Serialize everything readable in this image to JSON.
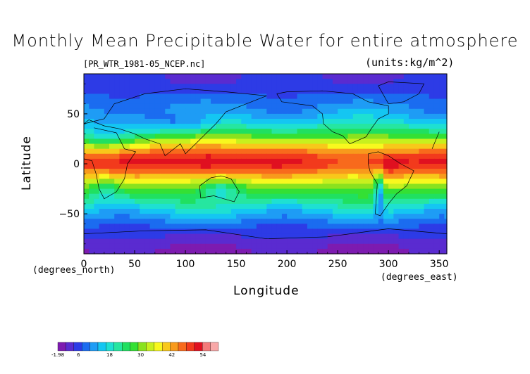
{
  "chart_data": {
    "type": "heatmap",
    "title": "Monthly Mean Precipitable Water for entire atmosphere",
    "source_label": "[PR_WTR_1981-05_NCEP.nc]",
    "units_label": "(units:kg/m^2)",
    "xlabel": "Longitude",
    "ylabel": "Latitude",
    "x_units_label": "(degrees_east)",
    "y_units_label": "(degrees_north)",
    "xlim": [
      0,
      357.5
    ],
    "ylim": [
      -90,
      90
    ],
    "x_ticks": [
      0,
      50,
      100,
      150,
      200,
      250,
      300,
      350
    ],
    "y_ticks": [
      -50,
      0,
      50
    ],
    "colorbar": {
      "min": -1.98,
      "max": 60,
      "tick_labels": [
        "-1.98",
        "6",
        "18",
        "30",
        "42",
        "54"
      ],
      "tick_values": [
        -1.98,
        6,
        18,
        30,
        42,
        54
      ],
      "colors": [
        "#7d1bb0",
        "#5a2bd0",
        "#2d3be6",
        "#1b6cf0",
        "#1e9cf5",
        "#14c6f2",
        "#1ee0d2",
        "#26e6a0",
        "#20e060",
        "#34e034",
        "#8ae21e",
        "#c8f01e",
        "#f8f81e",
        "#f8c81a",
        "#f89a1c",
        "#f86a1c",
        "#f23a1c",
        "#e01020",
        "#f47a7a",
        "#f8a8a8"
      ]
    },
    "zonal_profile": {
      "latitudes": [
        -90,
        -80,
        -70,
        -60,
        -50,
        -40,
        -30,
        -20,
        -10,
        0,
        10,
        20,
        30,
        40,
        50,
        60,
        70,
        80,
        90
      ],
      "values": [
        0,
        2,
        5,
        9,
        14,
        20,
        26,
        33,
        42,
        50,
        46,
        36,
        26,
        18,
        13,
        10,
        7,
        5,
        4
      ]
    }
  }
}
